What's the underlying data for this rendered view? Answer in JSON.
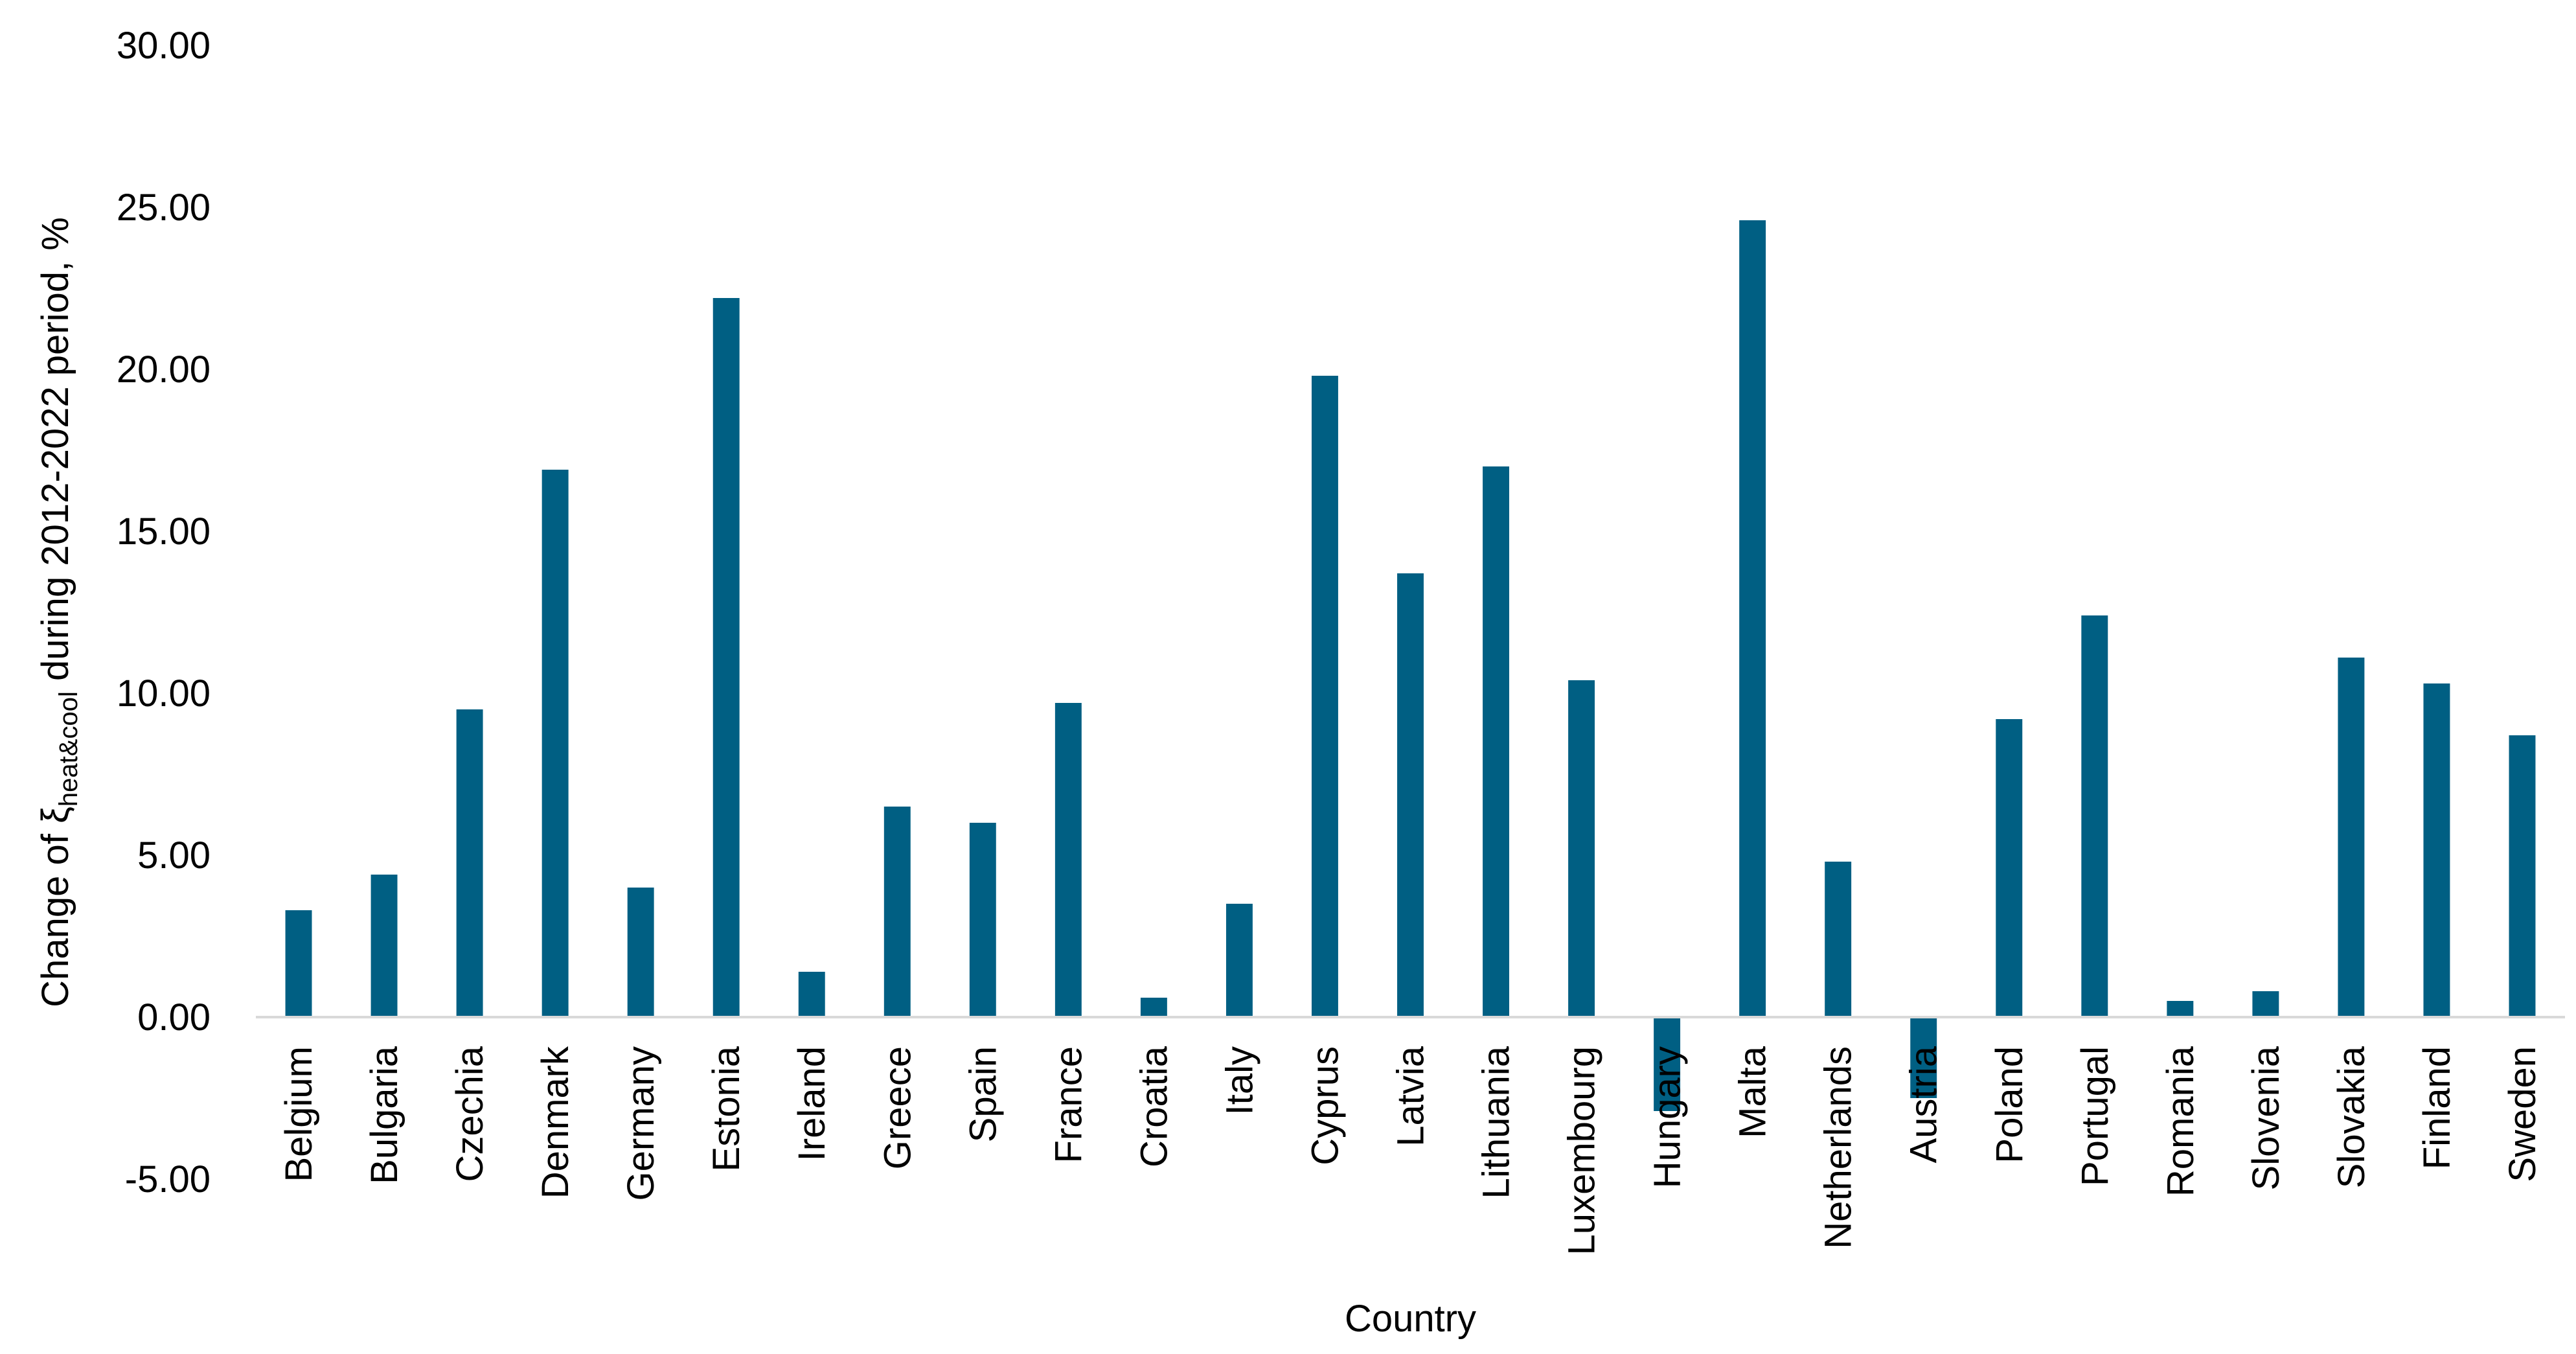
{
  "chart_data": {
    "type": "bar",
    "xlabel": "Country",
    "ylabel": {
      "prefix": "Change of ξ",
      "subscript": "heat&cool",
      "suffix": " during 2012-2022 period, %"
    },
    "ylim": [
      -5,
      30
    ],
    "yticks": [
      "-5.00",
      "0.00",
      "5.00",
      "10.00",
      "15.00",
      "20.00",
      "25.00",
      "30.00"
    ],
    "grid": false,
    "legend": "none",
    "bar_color": "#005F83",
    "categories": [
      "Belgium",
      "Bulgaria",
      "Czechia",
      "Denmark",
      "Germany",
      "Estonia",
      "Ireland",
      "Greece",
      "Spain",
      "France",
      "Croatia",
      "Italy",
      "Cyprus",
      "Latvia",
      "Lithuania",
      "Luxembourg",
      "Hungary",
      "Malta",
      "Netherlands",
      "Austria",
      "Poland",
      "Portugal",
      "Romania",
      "Slovenia",
      "Slovakia",
      "Finland",
      "Sweden"
    ],
    "values": [
      3.3,
      4.4,
      9.5,
      16.9,
      4.0,
      22.2,
      1.4,
      6.5,
      6.0,
      9.7,
      0.6,
      3.5,
      19.8,
      13.7,
      17.0,
      10.4,
      -2.9,
      24.6,
      4.8,
      -2.5,
      9.2,
      12.4,
      0.5,
      0.8,
      11.1,
      10.3,
      8.7
    ]
  }
}
